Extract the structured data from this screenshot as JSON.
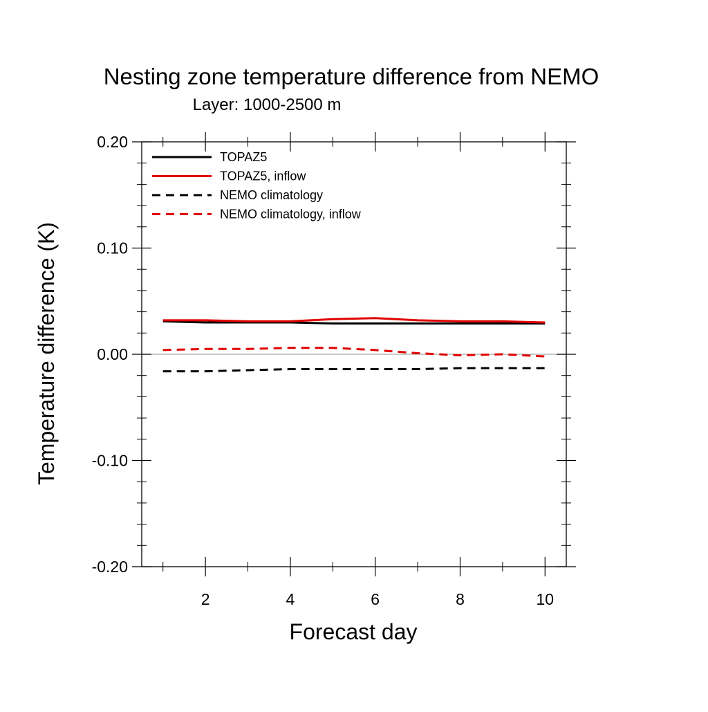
{
  "chart_data": {
    "type": "line",
    "title": "Nesting zone temperature difference from NEMO",
    "subtitle": "Layer: 1000-2500 m",
    "xlabel": "Forecast day",
    "ylabel": "Temperature difference (K)",
    "xlim": [
      0.5,
      10.5
    ],
    "ylim": [
      -0.2,
      0.2
    ],
    "x_ticks": [
      2,
      4,
      6,
      8,
      10
    ],
    "x_tick_labels": [
      "2",
      "4",
      "6",
      "8",
      "10"
    ],
    "y_ticks": [
      -0.2,
      -0.1,
      0.0,
      0.1,
      0.2
    ],
    "y_tick_labels": [
      "-0.20",
      "-0.10",
      "0.00",
      "0.10",
      "0.20"
    ],
    "zero_line": true,
    "grid": false,
    "legend_position": "top-left",
    "x": [
      1,
      2,
      3,
      4,
      5,
      6,
      7,
      8,
      9,
      10
    ],
    "series": [
      {
        "name": "TOPAZ5",
        "color": "#000000",
        "dash": "solid",
        "values": [
          0.031,
          0.03,
          0.03,
          0.03,
          0.029,
          0.029,
          0.029,
          0.029,
          0.029,
          0.029
        ]
      },
      {
        "name": "TOPAZ5, inflow",
        "color": "#e00000",
        "dash": "solid",
        "values": [
          0.032,
          0.032,
          0.031,
          0.031,
          0.033,
          0.034,
          0.032,
          0.031,
          0.031,
          0.03
        ]
      },
      {
        "name": "NEMO climatology",
        "color": "#000000",
        "dash": "dashed",
        "values": [
          -0.016,
          -0.016,
          -0.015,
          -0.014,
          -0.014,
          -0.014,
          -0.014,
          -0.013,
          -0.013,
          -0.013
        ]
      },
      {
        "name": "NEMO climatology, inflow",
        "color": "#e00000",
        "dash": "dashed",
        "values": [
          0.004,
          0.005,
          0.005,
          0.006,
          0.006,
          0.004,
          0.001,
          -0.001,
          0.0,
          -0.002
        ]
      }
    ]
  }
}
